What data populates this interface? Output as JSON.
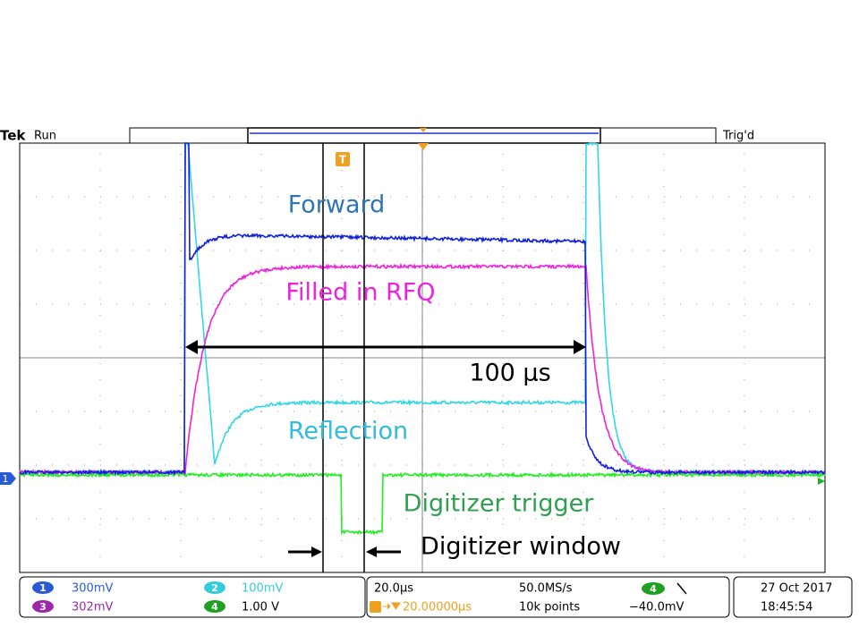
{
  "top_bar": {
    "brand": "Tek",
    "state": "Run",
    "trigger_status": "Trig'd"
  },
  "screen": {
    "trigger_marker": "T",
    "channel_marker": "1"
  },
  "annotations": {
    "forward": "Forward",
    "filled": "Filled in RFQ",
    "pulse_width": "100 µs",
    "reflection": "Reflection",
    "digitizer_trigger": "Digitizer trigger",
    "digitizer_window": "Digitizer window"
  },
  "status": {
    "channels": [
      {
        "number": "1",
        "scale": "300mV"
      },
      {
        "number": "3",
        "scale": "302mV"
      },
      {
        "number": "2",
        "scale": "100mV"
      },
      {
        "number": "4",
        "scale": "1.00 V"
      }
    ],
    "timebase": "20.0μs",
    "sample_rate": "50.0MS/s",
    "trigger_channel": "4",
    "trigger_delay": "20.00000μs",
    "record_length": "10k points",
    "trigger_level": "−40.0mV",
    "date": "27 Oct  2017",
    "time": "18:45:54"
  }
}
